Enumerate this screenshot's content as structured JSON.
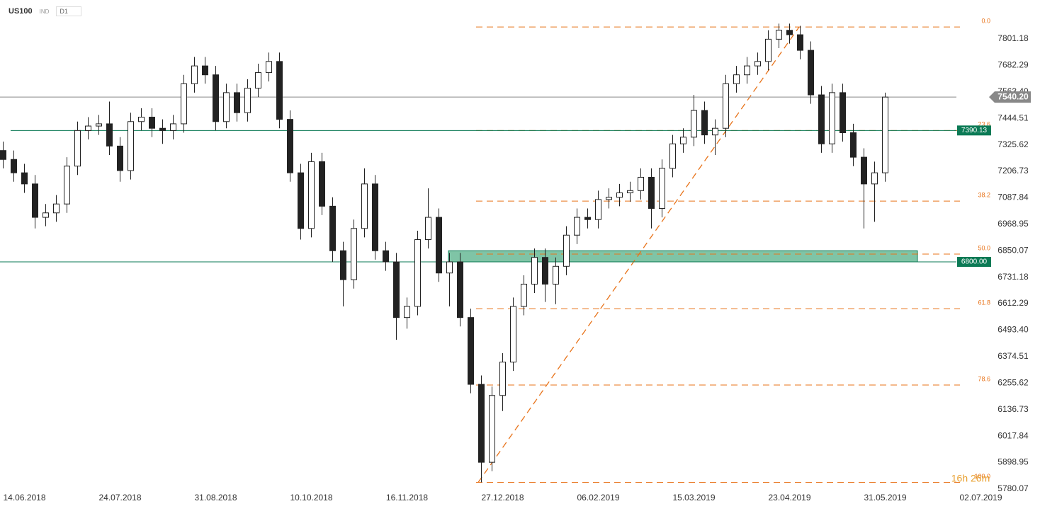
{
  "header": {
    "symbol": "US100",
    "market": "IND",
    "timeframe": "D1"
  },
  "chart_data": {
    "type": "candlestick",
    "open": [
      7300,
      7260,
      7200,
      7150,
      7000,
      7020,
      7060,
      7230,
      7390,
      7410,
      7420,
      7320,
      7210,
      7430,
      7450,
      7400,
      7390,
      7420,
      7600,
      7680,
      7640,
      7430,
      7560,
      7470,
      7580,
      7650,
      7700,
      7440,
      7200,
      6950,
      7250,
      7050,
      6850,
      6720,
      6950,
      7150,
      6850,
      6800,
      6550,
      6600,
      6900,
      7000,
      6750,
      6800,
      6550,
      6250,
      5900,
      6200,
      6350,
      6600,
      6700,
      6820,
      6700,
      6780,
      6920,
      7000,
      6990,
      7080,
      7090,
      7110,
      7120,
      7180,
      7040,
      7220,
      7330,
      7360,
      7480,
      7370,
      7400,
      7600,
      7640,
      7680,
      7700,
      7800,
      7840,
      7820,
      7750,
      7550,
      7330,
      7560,
      7380,
      7270,
      7150,
      7200
    ],
    "high": [
      7340,
      7300,
      7240,
      7190,
      7060,
      7100,
      7270,
      7430,
      7450,
      7460,
      7520,
      7360,
      7470,
      7490,
      7490,
      7440,
      7460,
      7640,
      7720,
      7720,
      7680,
      7600,
      7600,
      7620,
      7690,
      7740,
      7740,
      7480,
      7240,
      7290,
      7290,
      7090,
      6890,
      6990,
      7220,
      7190,
      6890,
      6840,
      6640,
      6940,
      7130,
      7040,
      6840,
      6840,
      6590,
      6290,
      6240,
      6390,
      6640,
      6740,
      6860,
      6860,
      6820,
      6960,
      7040,
      7040,
      7120,
      7130,
      7150,
      7160,
      7220,
      7220,
      7260,
      7370,
      7400,
      7550,
      7520,
      7440,
      7640,
      7680,
      7720,
      7740,
      7840,
      7870,
      7870,
      7860,
      7790,
      7590,
      7600,
      7600,
      7420,
      7310,
      7250,
      7560
    ],
    "low": [
      7220,
      7160,
      7110,
      6950,
      6960,
      6980,
      7020,
      7190,
      7350,
      7370,
      7280,
      7160,
      7170,
      7390,
      7360,
      7330,
      7350,
      7380,
      7560,
      7600,
      7390,
      7400,
      7430,
      7430,
      7540,
      7610,
      7400,
      7160,
      6900,
      6910,
      7010,
      6800,
      6600,
      6680,
      6910,
      6810,
      6760,
      6450,
      6500,
      6560,
      6860,
      6710,
      6600,
      6510,
      6210,
      5810,
      5860,
      6130,
      6310,
      6560,
      6660,
      6620,
      6610,
      6740,
      6880,
      6950,
      6950,
      7040,
      7050,
      7070,
      7080,
      6950,
      7000,
      7180,
      7290,
      7320,
      7330,
      7280,
      7360,
      7560,
      7600,
      7640,
      7660,
      7760,
      7780,
      7710,
      7510,
      7290,
      7290,
      7340,
      7230,
      6950,
      6980,
      7160
    ],
    "close": [
      7260,
      7200,
      7150,
      7000,
      7020,
      7060,
      7230,
      7390,
      7410,
      7420,
      7320,
      7210,
      7430,
      7450,
      7400,
      7390,
      7420,
      7600,
      7680,
      7640,
      7430,
      7560,
      7470,
      7580,
      7650,
      7700,
      7440,
      7200,
      6950,
      7250,
      7050,
      6850,
      6720,
      6950,
      7150,
      6850,
      6800,
      6550,
      6600,
      6900,
      7000,
      6750,
      6800,
      6550,
      6250,
      5900,
      6200,
      6350,
      6600,
      6700,
      6820,
      6700,
      6780,
      6920,
      7000,
      6990,
      7080,
      7090,
      7110,
      7120,
      7180,
      7040,
      7220,
      7330,
      7360,
      7480,
      7370,
      7400,
      7600,
      7640,
      7680,
      7700,
      7800,
      7840,
      7820,
      7750,
      7550,
      7330,
      7560,
      7380,
      7270,
      7150,
      7200,
      7540
    ],
    "up_color": "#ffffff",
    "down_color": "#222222",
    "xlim": [
      -0.3,
      92.7
    ],
    "xticks": [
      {
        "value": 2,
        "label": "14.06.2018"
      },
      {
        "value": 11,
        "label": "24.07.2018"
      },
      {
        "value": 20,
        "label": "31.08.2018"
      },
      {
        "value": 29,
        "label": "10.10.2018"
      },
      {
        "value": 38,
        "label": "16.11.2018"
      },
      {
        "value": 47,
        "label": "27.12.2018"
      },
      {
        "value": 56,
        "label": "06.02.2019"
      },
      {
        "value": 65,
        "label": "15.03.2019"
      },
      {
        "value": 74,
        "label": "23.04.2019"
      },
      {
        "value": 83,
        "label": "31.05.2019"
      },
      {
        "value": 92,
        "label": "02.07.2019"
      }
    ],
    "ylim": [
      5767,
      7976
    ],
    "yticks": [
      7801.18,
      7682.29,
      {
        "value": 7563.4,
        "label": "7563.40"
      },
      7444.51,
      7325.62,
      7206.73,
      7087.84,
      6968.95,
      6850.07,
      6731.18,
      6612.29,
      {
        "value": 6493.4,
        "label": "6493.40"
      },
      6374.51,
      6255.62,
      6136.73,
      6017.84,
      5898.95,
      5780.07
    ],
    "levels": [
      {
        "value": 7540.2,
        "label": "7540.20",
        "color": "#888888"
      },
      {
        "value": 7390.13,
        "label": "7390.13",
        "color": "#0b7a55"
      },
      {
        "value": 6800,
        "label": "6800.00",
        "color": "#0b7a55"
      }
    ],
    "zone": {
      "from": 6800,
      "to": 6850,
      "color": "#7fc4a6"
    },
    "fib": {
      "color": "#e8731a",
      "levels": [
        {
          "value": 7855,
          "label": "0.0"
        },
        {
          "value": 7390,
          "label": "23.6"
        },
        {
          "value": 7073,
          "label": "38.2"
        },
        {
          "value": 6835,
          "label": "50.0"
        },
        {
          "value": 6590,
          "label": "61.8"
        },
        {
          "value": 6247,
          "label": "78.6"
        },
        {
          "value": 5810,
          "label": "100.0"
        }
      ]
    },
    "countdown": "16h 26m"
  }
}
